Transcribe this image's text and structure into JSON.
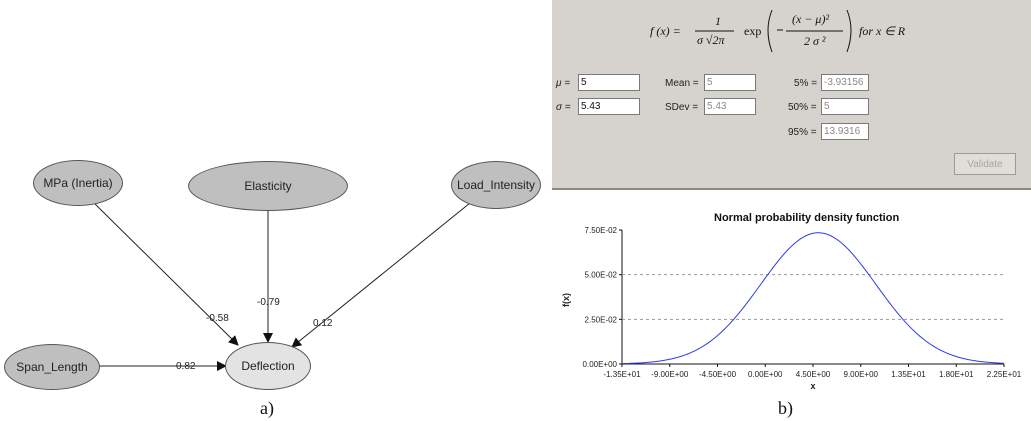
{
  "network": {
    "nodes": {
      "mpa": "MPa (Inertia)",
      "elasticity": "Elasticity",
      "load": "Load_Intensity",
      "span": "Span_Length",
      "deflection": "Deflection"
    },
    "weights": {
      "mpa": "-0.58",
      "elasticity": "-0.79",
      "load": "0.12",
      "span": "0.82"
    },
    "caption": "a)"
  },
  "panel": {
    "formula": {
      "lhs": "f (x) =",
      "numerator": "1",
      "denominator": "σ √2π",
      "exp": "exp",
      "exp_numerator": "(x − μ)²",
      "exp_denominator": "2 σ ²",
      "tail": "for  x ∈ R"
    },
    "mu_label": "μ =",
    "mu_value": "5",
    "sigma_label": "σ =",
    "sigma_value": "5.43",
    "mean_label": "Mean =",
    "mean_value": "5",
    "sdev_label": "SDev =",
    "sdev_value": "5.43",
    "p5_label": "5% =",
    "p5_value": "-3.93156",
    "p50_label": "50% =",
    "p50_value": "5",
    "p95_label": "95% =",
    "p95_value": "13.9316",
    "validate_label": "Validate"
  },
  "chart_data": {
    "type": "line",
    "title": "Normal probability density function",
    "xlabel": "x",
    "ylabel": "f(x)",
    "distribution": {
      "mean": 5,
      "sd": 5.43
    },
    "xlim": [
      -13.5,
      22.5
    ],
    "ylim": [
      0,
      0.075
    ],
    "x_ticks": [
      "-1.35E+01",
      "-9.00E+00",
      "-4.50E+00",
      "0.00E+00",
      "4.50E+00",
      "9.00E+00",
      "1.35E+01",
      "1.80E+01",
      "2.25E+01"
    ],
    "y_ticks": [
      "0.00E+00",
      "2.50E-02",
      "5.00E-02",
      "7.50E-02"
    ],
    "line_color": "#2f3be8",
    "grid": "horizontal-dashed",
    "caption": "b)"
  }
}
